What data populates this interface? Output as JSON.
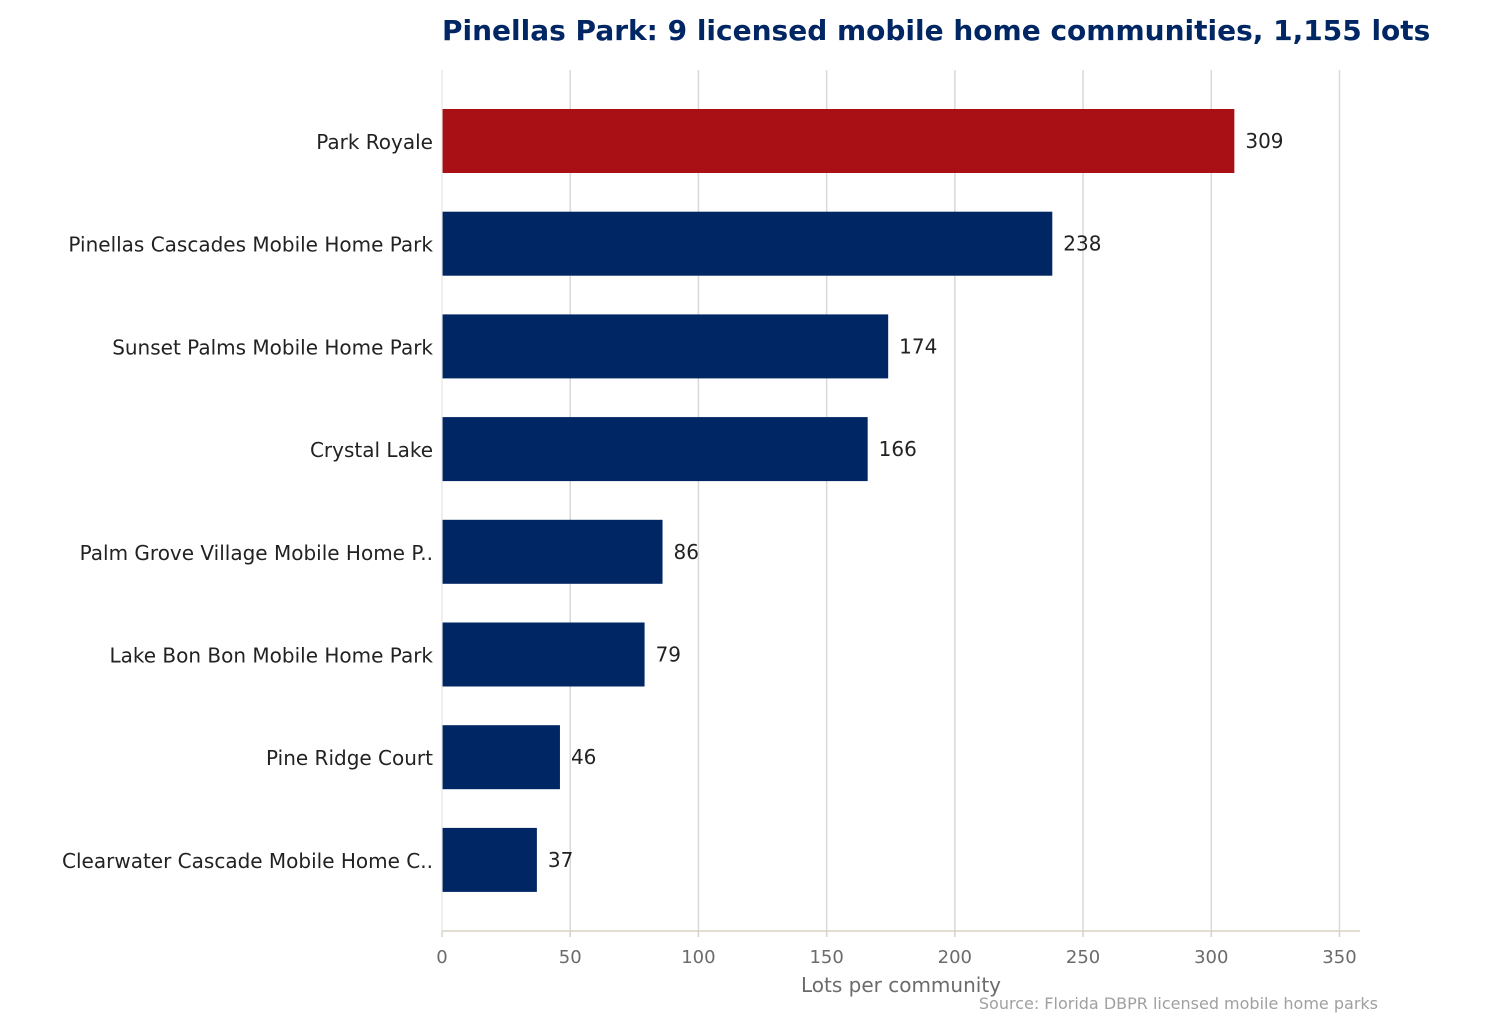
{
  "colors": {
    "primary": "#002664",
    "highlight": "#a81016",
    "title": "#002664",
    "grid": "#d9d9d9",
    "axis": "#d8d2c4",
    "tick_text": "#6b6b6b",
    "label_text": "#222222",
    "source_text": "#a0a0a0"
  },
  "source": "Source: Florida DBPR licensed mobile home parks",
  "chart_data": {
    "type": "bar",
    "orientation": "horizontal",
    "title": "Pinellas Park: 9 licensed mobile home communities, 1,155 lots",
    "xlabel": "Lots per community",
    "ylabel": "",
    "xlim": [
      0,
      358
    ],
    "xticks": [
      0,
      50,
      100,
      150,
      200,
      250,
      300,
      350
    ],
    "grid": "vertical",
    "categories": [
      "Park Royale",
      "Pinellas Cascades Mobile Home Park",
      "Sunset Palms Mobile Home Park",
      "Crystal Lake",
      "Palm Grove Village Mobile Home P..",
      "Lake Bon Bon Mobile Home Park",
      "Pine Ridge Court",
      "Clearwater Cascade Mobile Home C.."
    ],
    "values": [
      309,
      238,
      174,
      166,
      86,
      79,
      46,
      37
    ],
    "highlighted": [
      "Park Royale"
    ]
  }
}
